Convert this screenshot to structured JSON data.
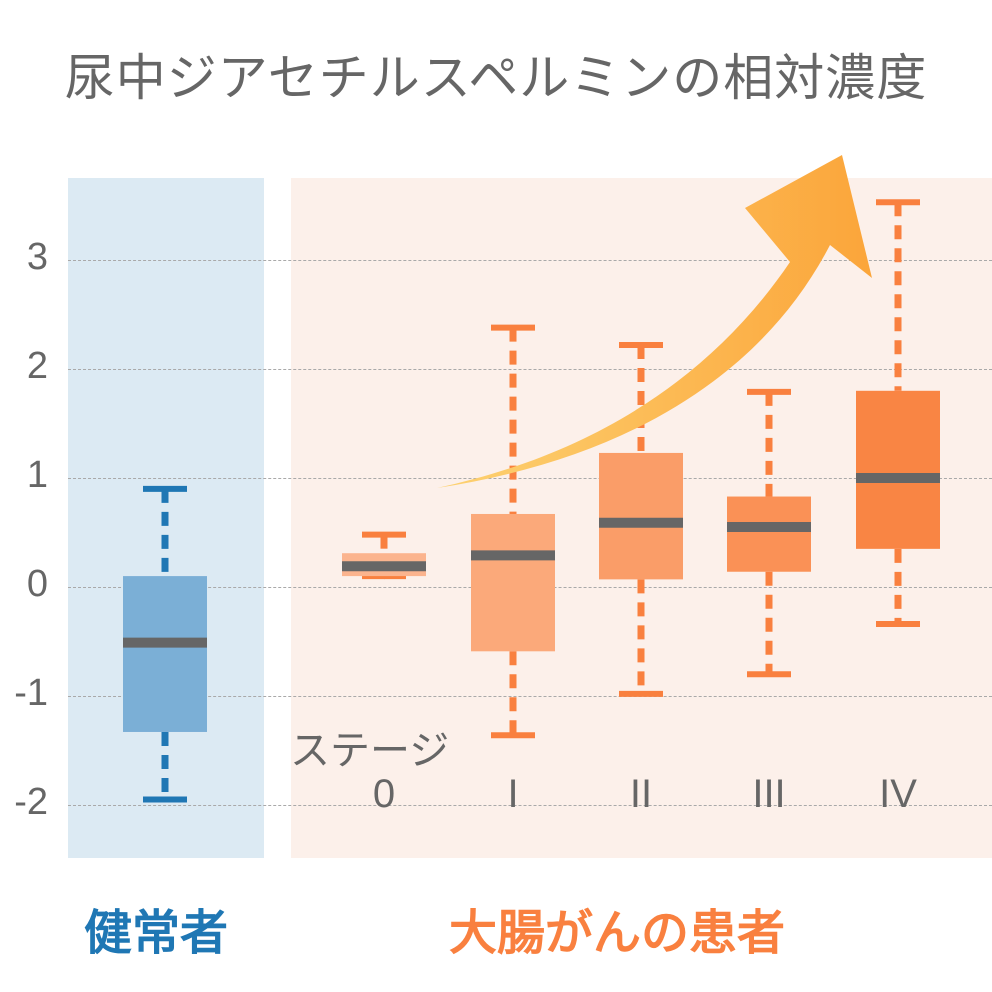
{
  "title": "尿中ジアセチルスペルミンの相対濃度",
  "colors": {
    "healthy_panel": "#dceaf3",
    "patient_panel": "#fcf0ea",
    "healthy_box": "#7bafd6",
    "healthy_whisker": "#1f77b4",
    "patient_whisker": "#f9803f",
    "median": "#666666",
    "arrow_start": "#fdd272",
    "arrow_end": "#fba53a",
    "healthy_text": "#1f77b4",
    "patient_text": "#f9803f"
  },
  "groups": {
    "healthy": "健常者",
    "patients": "大腸がんの患者"
  },
  "stage_label": "ステージ",
  "chart_data": {
    "type": "box",
    "title": "尿中ジアセチルスペルミンの相対濃度",
    "xlabel": "ステージ",
    "ylabel": "",
    "ylim": [
      -2.5,
      3.7
    ],
    "yticks": [
      3,
      2,
      1,
      0,
      -1,
      -2
    ],
    "grid": true,
    "categories": [
      "健常者",
      "0",
      "I",
      "II",
      "III",
      "IV"
    ],
    "series": [
      {
        "name": "健常者",
        "min": -1.95,
        "q1": -1.33,
        "median": -0.51,
        "q3": 0.1,
        "max": 0.9,
        "box_color": "#7bafd6"
      },
      {
        "name": "0",
        "min": 0.1,
        "q1": 0.1,
        "median": 0.19,
        "q3": 0.31,
        "max": 0.48,
        "box_color": "#fbb48e"
      },
      {
        "name": "I",
        "min": -1.36,
        "q1": -0.59,
        "median": 0.29,
        "q3": 0.67,
        "max": 2.38,
        "box_color": "#fba97a"
      },
      {
        "name": "II",
        "min": -0.98,
        "q1": 0.07,
        "median": 0.59,
        "q3": 1.23,
        "max": 2.22,
        "box_color": "#fa9d68"
      },
      {
        "name": "III",
        "min": -0.8,
        "q1": 0.14,
        "median": 0.55,
        "q3": 0.83,
        "max": 1.79,
        "box_color": "#fa9156"
      },
      {
        "name": "IV",
        "min": -0.34,
        "q1": 0.35,
        "median": 1.0,
        "q3": 1.8,
        "max": 3.53,
        "box_color": "#f98544"
      }
    ],
    "annotations": [
      "upward trend arrow across stages 0 → IV"
    ]
  }
}
